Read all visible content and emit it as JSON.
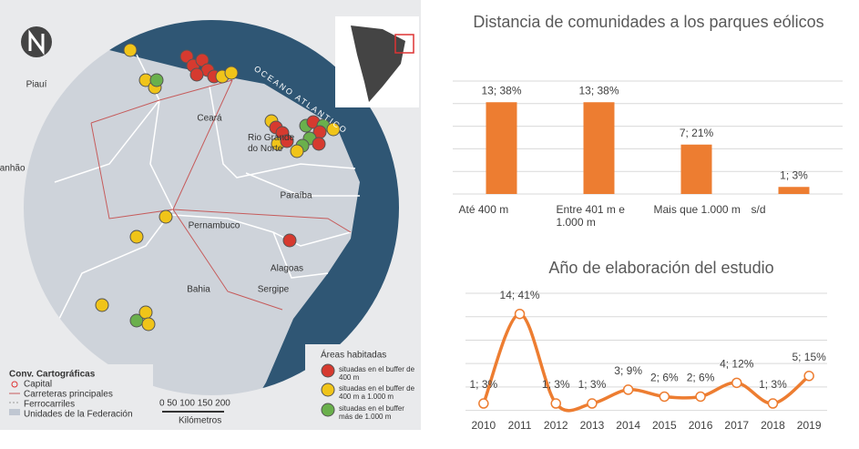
{
  "map": {
    "states": [
      "Maranhão",
      "Piauí",
      "Ceará",
      "Rio Grande do Norte",
      "Paraíba",
      "Pernambuco",
      "Alagoas",
      "Sergipe",
      "Bahia"
    ],
    "ocean": "OCEANO ATLANTICO",
    "conventions": {
      "title": "Conv. Cartográficas",
      "items": [
        "Capital",
        "Carreteras principales",
        "Ferrocarriles",
        "Unidades de la Federación"
      ]
    },
    "scale": {
      "ticks": "0  50 100 150 200",
      "unit": "Kilómetros"
    },
    "legend": {
      "title": "Áreas habitadas",
      "items": [
        "situadas en el buffer de 400 m",
        "situadas en el buffer de 400 m a 1.000 m",
        "situadas en el buffer más de 1.000 m"
      ]
    }
  },
  "chart_data": [
    {
      "type": "bar",
      "title": "Distancia de comunidades  a los parques eólicos",
      "categories": [
        "Até 400 m",
        "Entre 401 m e 1.000 m",
        "Mais que 1.000 m",
        "s/d"
      ],
      "values": [
        13,
        13,
        7,
        1
      ],
      "value_labels": [
        "13; 38%",
        "13; 38%",
        "7; 21%",
        "1; 3%"
      ],
      "color": "#ed7d31",
      "ylim": [
        0,
        16
      ],
      "grid": true
    },
    {
      "type": "line",
      "title": "Año de elaboración del estudio",
      "categories": [
        2010,
        2011,
        2012,
        2013,
        2014,
        2015,
        2016,
        2017,
        2018,
        2019
      ],
      "values": [
        1,
        14,
        1,
        1,
        3,
        2,
        2,
        4,
        1,
        5
      ],
      "value_labels": [
        "1; 3%",
        "14; 41%",
        "1; 3%",
        "1; 3%",
        "3; 9%",
        "2; 6%",
        "2; 6%",
        "4; 12%",
        "1; 3%",
        "5; 15%"
      ],
      "color": "#ed7d31",
      "ylim": [
        0,
        17
      ],
      "grid": true
    }
  ]
}
